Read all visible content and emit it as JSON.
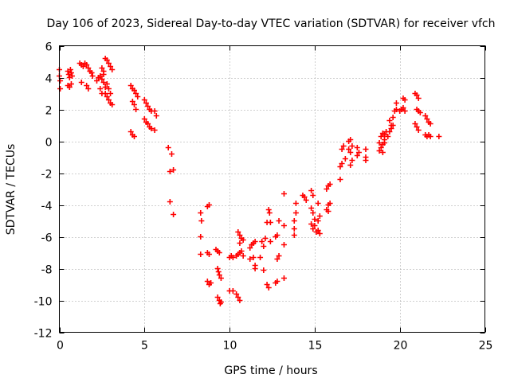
{
  "chart_data": {
    "type": "scatter",
    "title": "Day 106 of 2023, Sidereal Day-to-day VTEC variation (SDTVAR) for receiver vfch",
    "xlabel": "GPS time / hours",
    "ylabel": "SDTVAR / TECUs",
    "xlim": [
      0,
      25
    ],
    "ylim": [
      -12,
      6
    ],
    "xticks": [
      0,
      5,
      10,
      15,
      20,
      25
    ],
    "yticks": [
      -12,
      -10,
      -8,
      -6,
      -4,
      -2,
      0,
      2,
      4,
      6
    ],
    "grid": true,
    "marker": "+",
    "series": [
      {
        "name": "SDTVAR",
        "color": "#ff0000",
        "points": [
          [
            0.0,
            4.5
          ],
          [
            0.0,
            4.1
          ],
          [
            0.05,
            3.8
          ],
          [
            0.05,
            3.3
          ],
          [
            0.5,
            4.4
          ],
          [
            0.55,
            4.2
          ],
          [
            0.6,
            4.0
          ],
          [
            0.65,
            4.5
          ],
          [
            0.7,
            4.3
          ],
          [
            0.75,
            4.1
          ],
          [
            0.5,
            3.5
          ],
          [
            0.6,
            3.4
          ],
          [
            0.7,
            3.6
          ],
          [
            1.2,
            4.9
          ],
          [
            1.3,
            4.8
          ],
          [
            1.4,
            4.7
          ],
          [
            1.5,
            4.9
          ],
          [
            1.6,
            4.8
          ],
          [
            1.7,
            4.6
          ],
          [
            1.8,
            4.4
          ],
          [
            1.9,
            4.3
          ],
          [
            1.95,
            4.1
          ],
          [
            1.3,
            3.7
          ],
          [
            1.6,
            3.5
          ],
          [
            1.7,
            3.3
          ],
          [
            2.2,
            3.8
          ],
          [
            2.3,
            4.0
          ],
          [
            2.4,
            4.1
          ],
          [
            2.4,
            3.3
          ],
          [
            2.5,
            3.0
          ],
          [
            2.5,
            3.9
          ],
          [
            2.6,
            3.7
          ],
          [
            2.6,
            4.2
          ],
          [
            2.7,
            3.4
          ],
          [
            2.7,
            3.0
          ],
          [
            2.8,
            2.8
          ],
          [
            2.8,
            3.6
          ],
          [
            2.9,
            2.6
          ],
          [
            2.9,
            3.3
          ],
          [
            3.0,
            2.4
          ],
          [
            3.1,
            2.3
          ],
          [
            3.0,
            3.0
          ],
          [
            2.7,
            5.2
          ],
          [
            2.8,
            5.1
          ],
          [
            2.9,
            4.9
          ],
          [
            3.0,
            4.7
          ],
          [
            3.1,
            4.5
          ],
          [
            2.5,
            4.6
          ],
          [
            2.6,
            4.4
          ],
          [
            4.2,
            3.5
          ],
          [
            4.3,
            3.3
          ],
          [
            4.4,
            3.2
          ],
          [
            4.5,
            3.0
          ],
          [
            4.6,
            2.8
          ],
          [
            4.3,
            2.5
          ],
          [
            4.4,
            2.3
          ],
          [
            4.5,
            2.0
          ],
          [
            4.2,
            0.6
          ],
          [
            4.3,
            0.4
          ],
          [
            4.4,
            0.3
          ],
          [
            5.0,
            2.6
          ],
          [
            5.1,
            2.4
          ],
          [
            5.2,
            2.2
          ],
          [
            5.3,
            2.0
          ],
          [
            5.4,
            1.9
          ],
          [
            5.0,
            1.4
          ],
          [
            5.1,
            1.2
          ],
          [
            5.2,
            1.1
          ],
          [
            5.3,
            0.9
          ],
          [
            5.4,
            0.8
          ],
          [
            5.6,
            0.7
          ],
          [
            5.6,
            1.9
          ],
          [
            5.7,
            1.6
          ],
          [
            6.4,
            -0.4
          ],
          [
            6.6,
            -0.8
          ],
          [
            6.5,
            -1.9
          ],
          [
            6.7,
            -1.8
          ],
          [
            6.5,
            -3.8
          ],
          [
            6.7,
            -4.6
          ],
          [
            8.3,
            -4.5
          ],
          [
            8.35,
            -5.0
          ],
          [
            8.3,
            -6.0
          ],
          [
            8.3,
            -7.1
          ],
          [
            8.7,
            -4.1
          ],
          [
            8.8,
            -4.0
          ],
          [
            8.8,
            -7.1
          ],
          [
            8.7,
            -7.0
          ],
          [
            8.7,
            -8.8
          ],
          [
            8.8,
            -9.0
          ],
          [
            8.9,
            -8.9
          ],
          [
            9.2,
            -6.8
          ],
          [
            9.3,
            -6.9
          ],
          [
            9.4,
            -7.0
          ],
          [
            9.3,
            -8.0
          ],
          [
            9.35,
            -8.2
          ],
          [
            9.4,
            -8.4
          ],
          [
            9.5,
            -8.6
          ],
          [
            9.3,
            -9.8
          ],
          [
            9.4,
            -10.0
          ],
          [
            9.45,
            -10.2
          ],
          [
            9.5,
            -10.1
          ],
          [
            10.0,
            -7.3
          ],
          [
            10.1,
            -7.2
          ],
          [
            10.2,
            -7.3
          ],
          [
            10.0,
            -9.4
          ],
          [
            10.2,
            -9.4
          ],
          [
            10.4,
            -9.6
          ],
          [
            10.5,
            -9.8
          ],
          [
            10.6,
            -10.0
          ],
          [
            10.4,
            -7.2
          ],
          [
            10.5,
            -7.1
          ],
          [
            10.6,
            -7.0
          ],
          [
            10.7,
            -6.9
          ],
          [
            10.8,
            -7.2
          ],
          [
            10.5,
            -5.7
          ],
          [
            10.6,
            -5.9
          ],
          [
            10.7,
            -6.1
          ],
          [
            10.8,
            -6.2
          ],
          [
            10.6,
            -6.4
          ],
          [
            11.2,
            -6.7
          ],
          [
            11.3,
            -6.5
          ],
          [
            11.4,
            -6.4
          ],
          [
            11.5,
            -6.3
          ],
          [
            11.2,
            -7.4
          ],
          [
            11.4,
            -7.3
          ],
          [
            11.5,
            -7.8
          ],
          [
            11.5,
            -8.0
          ],
          [
            11.8,
            -7.3
          ],
          [
            11.9,
            -6.3
          ],
          [
            12.0,
            -6.6
          ],
          [
            12.1,
            -6.1
          ],
          [
            12.0,
            -8.1
          ],
          [
            12.2,
            -5.1
          ],
          [
            12.3,
            -4.3
          ],
          [
            12.35,
            -4.5
          ],
          [
            12.2,
            -9.0
          ],
          [
            12.3,
            -9.2
          ],
          [
            12.4,
            -5.1
          ],
          [
            12.4,
            -6.3
          ],
          [
            12.7,
            -8.9
          ],
          [
            12.8,
            -8.8
          ],
          [
            12.9,
            -7.2
          ],
          [
            12.8,
            -7.4
          ],
          [
            12.7,
            -6.0
          ],
          [
            12.8,
            -5.9
          ],
          [
            12.9,
            -5.0
          ],
          [
            13.2,
            -3.3
          ],
          [
            13.2,
            -5.3
          ],
          [
            13.2,
            -6.5
          ],
          [
            13.2,
            -8.6
          ],
          [
            13.8,
            -5.0
          ],
          [
            13.8,
            -5.5
          ],
          [
            13.9,
            -3.9
          ],
          [
            13.9,
            -4.5
          ],
          [
            13.8,
            -5.9
          ],
          [
            14.3,
            -3.4
          ],
          [
            14.4,
            -3.5
          ],
          [
            14.5,
            -3.7
          ],
          [
            14.8,
            -3.1
          ],
          [
            14.9,
            -3.4
          ],
          [
            14.8,
            -4.2
          ],
          [
            14.9,
            -4.5
          ],
          [
            14.8,
            -5.2
          ],
          [
            14.9,
            -5.5
          ],
          [
            15.0,
            -4.9
          ],
          [
            15.1,
            -5.7
          ],
          [
            15.2,
            -5.6
          ],
          [
            15.3,
            -5.8
          ],
          [
            15.2,
            -5.0
          ],
          [
            15.3,
            -4.7
          ],
          [
            15.0,
            -5.3
          ],
          [
            15.2,
            -3.9
          ],
          [
            15.7,
            -3.0
          ],
          [
            15.8,
            -2.8
          ],
          [
            15.9,
            -2.7
          ],
          [
            15.8,
            -4.0
          ],
          [
            15.9,
            -3.9
          ],
          [
            15.7,
            -4.3
          ],
          [
            15.8,
            -4.4
          ],
          [
            16.5,
            -2.4
          ],
          [
            16.5,
            -1.6
          ],
          [
            16.6,
            -1.4
          ],
          [
            16.6,
            -0.5
          ],
          [
            16.7,
            -0.3
          ],
          [
            16.8,
            -1.1
          ],
          [
            17.0,
            -0.5
          ],
          [
            17.1,
            -0.7
          ],
          [
            17.2,
            -0.3
          ],
          [
            17.0,
            0.0
          ],
          [
            17.1,
            0.1
          ],
          [
            17.2,
            -1.2
          ],
          [
            17.1,
            -1.5
          ],
          [
            17.5,
            -0.4
          ],
          [
            17.5,
            -0.9
          ],
          [
            17.6,
            -0.7
          ],
          [
            18.0,
            -0.5
          ],
          [
            18.0,
            -1.0
          ],
          [
            18.0,
            -1.2
          ],
          [
            18.8,
            -0.6
          ],
          [
            18.9,
            -0.4
          ],
          [
            19.0,
            -0.2
          ],
          [
            19.1,
            0.1
          ],
          [
            18.9,
            0.3
          ],
          [
            19.0,
            0.5
          ],
          [
            19.1,
            0.4
          ],
          [
            19.0,
            -0.7
          ],
          [
            19.2,
            0.6
          ],
          [
            19.3,
            0.3
          ],
          [
            19.1,
            -0.1
          ],
          [
            18.8,
            -0.1
          ],
          [
            19.5,
            0.8
          ],
          [
            19.4,
            1.3
          ],
          [
            19.5,
            1.0
          ],
          [
            19.6,
            1.5
          ],
          [
            19.7,
            1.9
          ],
          [
            19.8,
            2.0
          ],
          [
            19.8,
            2.4
          ],
          [
            19.4,
            0.6
          ],
          [
            19.6,
            1.0
          ],
          [
            20.0,
            1.9
          ],
          [
            20.1,
            2.0
          ],
          [
            20.2,
            2.1
          ],
          [
            20.3,
            1.9
          ],
          [
            20.2,
            2.7
          ],
          [
            20.3,
            2.6
          ],
          [
            20.9,
            3.0
          ],
          [
            21.0,
            2.9
          ],
          [
            21.1,
            2.7
          ],
          [
            21.0,
            2.0
          ],
          [
            21.1,
            1.9
          ],
          [
            21.2,
            1.8
          ],
          [
            20.9,
            1.1
          ],
          [
            21.0,
            0.9
          ],
          [
            21.1,
            0.7
          ],
          [
            21.5,
            1.6
          ],
          [
            21.6,
            1.4
          ],
          [
            21.7,
            1.2
          ],
          [
            21.8,
            1.1
          ],
          [
            21.5,
            0.4
          ],
          [
            21.6,
            0.3
          ],
          [
            21.7,
            0.4
          ],
          [
            21.8,
            0.3
          ],
          [
            22.3,
            0.3
          ]
        ]
      }
    ]
  }
}
